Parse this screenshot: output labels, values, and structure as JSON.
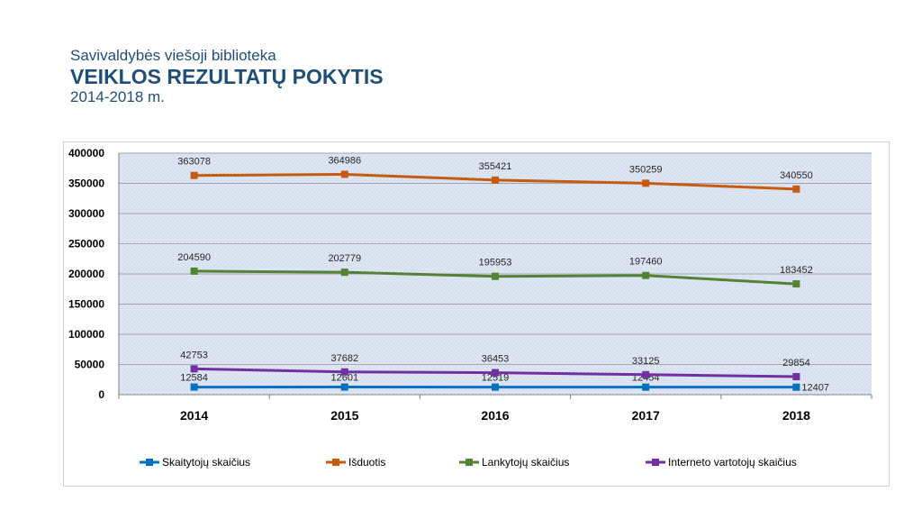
{
  "header": {
    "subtitle": "Savivaldybės viešoji biblioteka",
    "title": "VEIKLOS REZULTATŲ POKYTIS",
    "period": "2014-2018 m."
  },
  "chart_data": {
    "type": "line",
    "categories": [
      "2014",
      "2015",
      "2016",
      "2017",
      "2018"
    ],
    "ylim": [
      0,
      400000
    ],
    "yticks": [
      0,
      50000,
      100000,
      150000,
      200000,
      250000,
      300000,
      350000,
      400000
    ],
    "grid": true,
    "legend_position": "bottom",
    "series": [
      {
        "name": "Skaitytojų skaičius",
        "color": "#0070c0",
        "values": [
          12584,
          12601,
          12519,
          12454,
          12407
        ]
      },
      {
        "name": "Išduotis",
        "color": "#c55a11",
        "values": [
          363078,
          364986,
          355421,
          350259,
          340550
        ]
      },
      {
        "name": "Lankytojų skaičius",
        "color": "#548235",
        "values": [
          204590,
          202779,
          195953,
          197460,
          183452
        ]
      },
      {
        "name": "Interneto vartotojų skaičius",
        "color": "#7030a0",
        "values": [
          42753,
          37682,
          36453,
          33125,
          29854
        ]
      }
    ]
  }
}
